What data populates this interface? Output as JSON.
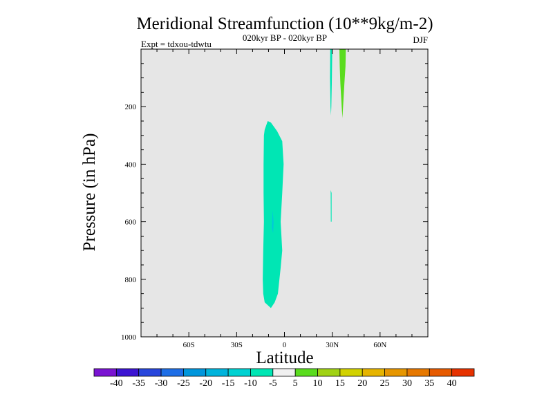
{
  "chart_data": {
    "type": "contour",
    "title": "Meridional Streamfunction (10**9kg/m-2)",
    "subtitle_center": "020kyr BP - 020kyr BP",
    "subtitle_left": "Expt = tdxou-tdwtu",
    "subtitle_right": "DJF",
    "xlabel": "Latitude",
    "ylabel": "Pressure (in hPa)",
    "xlim": [
      -90,
      90
    ],
    "ylim": [
      1000,
      0
    ],
    "y_reversed": true,
    "grid": false,
    "background_color": "#e6e6e6",
    "x_ticks": [
      {
        "value": -60,
        "label": "60S"
      },
      {
        "value": -30,
        "label": "30S"
      },
      {
        "value": 0,
        "label": "0"
      },
      {
        "value": 30,
        "label": "30N"
      },
      {
        "value": 60,
        "label": "60N"
      }
    ],
    "y_ticks": [
      {
        "value": 200,
        "label": "200"
      },
      {
        "value": 400,
        "label": "400"
      },
      {
        "value": 600,
        "label": "600"
      },
      {
        "value": 800,
        "label": "800"
      },
      {
        "value": 1000,
        "label": "1000"
      }
    ],
    "regions": [
      {
        "name": "negative-cell-tropics",
        "level_range": [
          -10,
          -5
        ],
        "color": "#00e6b4",
        "outline": [
          [
            -12.4,
            280
          ],
          [
            -10.5,
            250
          ],
          [
            -8.5,
            255
          ],
          [
            -4.6,
            285
          ],
          [
            -1.4,
            320
          ],
          [
            -0.5,
            400
          ],
          [
            -1.4,
            500
          ],
          [
            -2.4,
            600
          ],
          [
            -1.4,
            700
          ],
          [
            -2.4,
            760
          ],
          [
            -4.1,
            850
          ],
          [
            -6.1,
            880
          ],
          [
            -8.5,
            900
          ],
          [
            -12.4,
            880
          ],
          [
            -13.3,
            850
          ],
          [
            -13.6,
            800
          ],
          [
            -13.3,
            700
          ],
          [
            -12.9,
            600
          ],
          [
            -13.1,
            500
          ],
          [
            -13.1,
            400
          ],
          [
            -12.9,
            300
          ]
        ]
      },
      {
        "name": "negative-core-tropics",
        "level_range": [
          -15,
          -10
        ],
        "color": "#00c8dc",
        "outline": [
          [
            -7.4,
            560
          ],
          [
            -6.8,
            600
          ],
          [
            -7.1,
            640
          ],
          [
            -7.9,
            620
          ]
        ]
      },
      {
        "name": "negative-sliver-30n-upper",
        "level_range": [
          -10,
          -5
        ],
        "color": "#00e6b4",
        "outline": [
          [
            28.7,
            0
          ],
          [
            30.0,
            0
          ],
          [
            29.7,
            120
          ],
          [
            29.4,
            200
          ],
          [
            29.2,
            230
          ],
          [
            28.9,
            200
          ],
          [
            28.6,
            100
          ]
        ]
      },
      {
        "name": "negative-sliver-30n-mid",
        "level_range": [
          -10,
          -5
        ],
        "color": "#00e6b4",
        "outline": [
          [
            29.0,
            490
          ],
          [
            29.6,
            500
          ],
          [
            29.6,
            600
          ],
          [
            29.1,
            600
          ]
        ]
      },
      {
        "name": "positive-cell-north",
        "level_range": [
          5,
          10
        ],
        "color": "#5adc1e",
        "outline": [
          [
            34.5,
            0
          ],
          [
            38.5,
            0
          ],
          [
            38.3,
            60
          ],
          [
            37.6,
            120
          ],
          [
            37.0,
            180
          ],
          [
            36.4,
            240
          ],
          [
            35.9,
            200
          ],
          [
            35.1,
            120
          ],
          [
            34.7,
            60
          ]
        ]
      }
    ],
    "colorbar": {
      "colors": [
        "#7a14d2",
        "#3c14d2",
        "#2846dc",
        "#1e6ee6",
        "#0096dc",
        "#00b4dc",
        "#00d2d2",
        "#00e6b4",
        "#f0f0f0",
        "#5adc1e",
        "#a0d214",
        "#d2d200",
        "#e6b400",
        "#e69600",
        "#e67800",
        "#e65a00",
        "#e63200"
      ],
      "labels": [
        "-40",
        "-35",
        "-30",
        "-25",
        "-20",
        "-15",
        "-10",
        "-5",
        "5",
        "10",
        "15",
        "20",
        "25",
        "30",
        "35",
        "40"
      ]
    }
  }
}
